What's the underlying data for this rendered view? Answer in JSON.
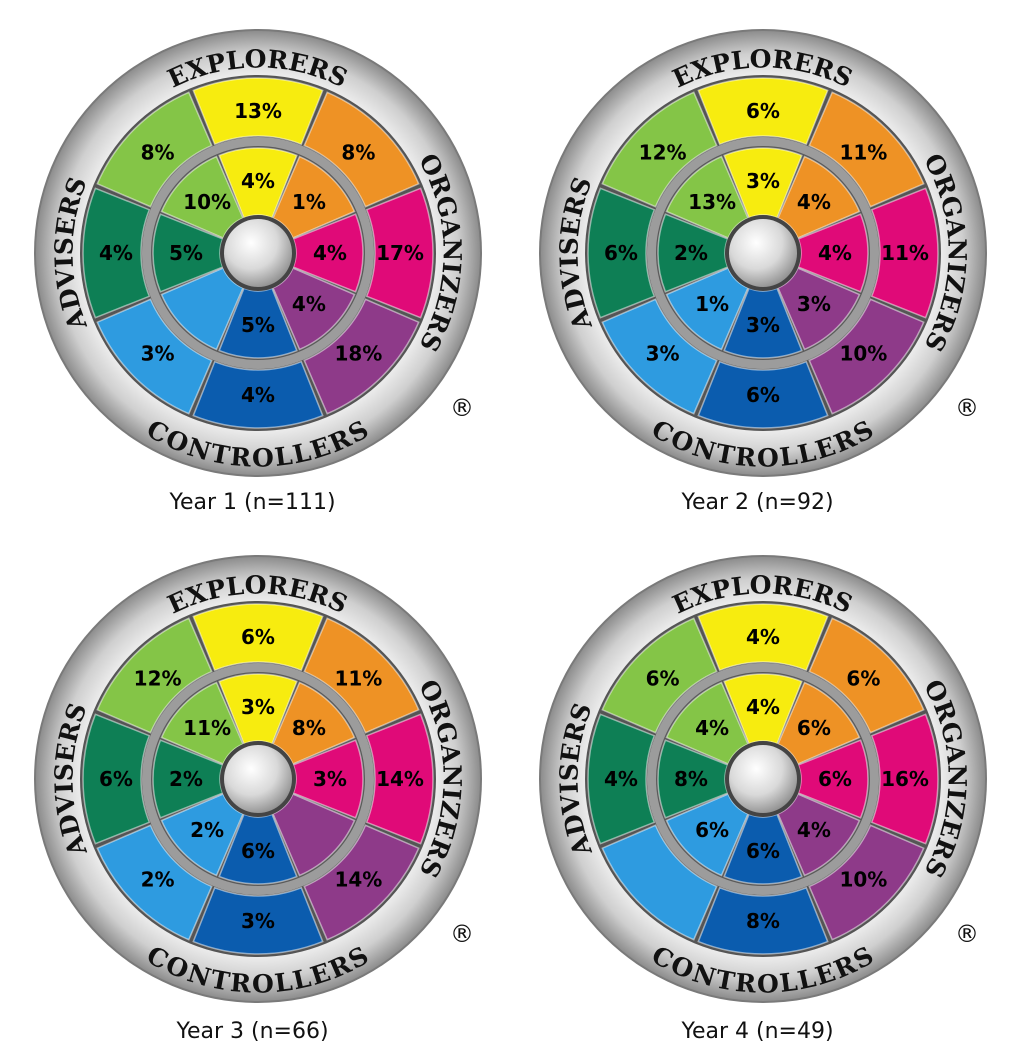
{
  "colors": {
    "explorers": "#F7EC0F",
    "organizers_left": "#EE9225",
    "organizers_right": "#E00A78",
    "controllers_right": "#8E3A89",
    "controllers": "#0B5CAE",
    "controllers_left": "#2E9BE0",
    "advisers_right": "#0E7F55",
    "advisers_left": "#84C547"
  },
  "ring_labels": {
    "top": "EXPLORERS",
    "right": "ORGANIZERS",
    "bottom": "CONTROLLERS",
    "left": "ADVISERS",
    "registered": "®"
  },
  "chart_data": [
    {
      "type": "pie",
      "caption": "Year 1 (n=111)",
      "segments": [
        "explorers",
        "organizers_left",
        "organizers_right",
        "controllers_right",
        "controllers",
        "controllers_left",
        "advisers_right",
        "advisers_left"
      ],
      "outer": [
        "13%",
        "8%",
        "17%",
        "18%",
        "4%",
        "3%",
        "4%",
        "8%"
      ],
      "inner": [
        "4%",
        "1%",
        "4%",
        "4%",
        "5%",
        "",
        "5%",
        "10%"
      ]
    },
    {
      "type": "pie",
      "caption": "Year 2 (n=92)",
      "segments": [
        "explorers",
        "organizers_left",
        "organizers_right",
        "controllers_right",
        "controllers",
        "controllers_left",
        "advisers_right",
        "advisers_left"
      ],
      "outer": [
        "6%",
        "11%",
        "11%",
        "10%",
        "6%",
        "3%",
        "6%",
        "12%"
      ],
      "inner": [
        "3%",
        "4%",
        "4%",
        "3%",
        "3%",
        "1%",
        "2%",
        "13%"
      ]
    },
    {
      "type": "pie",
      "caption": "Year 3 (n=66)",
      "segments": [
        "explorers",
        "organizers_left",
        "organizers_right",
        "controllers_right",
        "controllers",
        "controllers_left",
        "advisers_right",
        "advisers_left"
      ],
      "outer": [
        "6%",
        "11%",
        "14%",
        "14%",
        "3%",
        "2%",
        "6%",
        "12%"
      ],
      "inner": [
        "3%",
        "8%",
        "3%",
        "",
        "6%",
        "2%",
        "2%",
        "11%"
      ]
    },
    {
      "type": "pie",
      "caption": "Year 4 (n=49)",
      "segments": [
        "explorers",
        "organizers_left",
        "organizers_right",
        "controllers_right",
        "controllers",
        "controllers_left",
        "advisers_right",
        "advisers_left"
      ],
      "outer": [
        "4%",
        "6%",
        "16%",
        "10%",
        "8%",
        "",
        "4%",
        "6%"
      ],
      "inner": [
        "4%",
        "6%",
        "6%",
        "4%",
        "6%",
        "6%",
        "8%",
        "4%"
      ]
    }
  ]
}
